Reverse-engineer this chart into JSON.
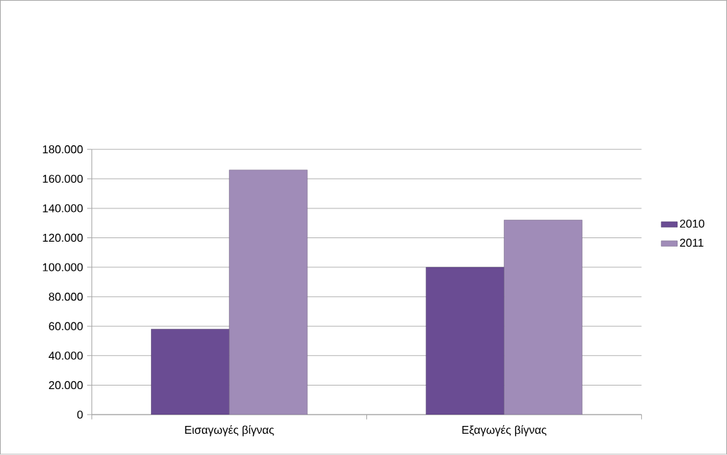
{
  "chart_data": {
    "type": "bar",
    "categories": [
      "Εισαγωγές βίγνας",
      "Εξαγωγές βίγνας"
    ],
    "series": [
      {
        "name": "2010",
        "color": "#6a4c93",
        "values": [
          58000,
          100000
        ]
      },
      {
        "name": "2011",
        "color": "#a08cb8",
        "values": [
          166000,
          132000
        ]
      }
    ],
    "ylim": [
      0,
      180000
    ],
    "yticks": [
      {
        "value": 0,
        "label": "0"
      },
      {
        "value": 20000,
        "label": "20.000"
      },
      {
        "value": 40000,
        "label": "40.000"
      },
      {
        "value": 60000,
        "label": "60.000"
      },
      {
        "value": 80000,
        "label": "80.000"
      },
      {
        "value": 100000,
        "label": "100.000"
      },
      {
        "value": 120000,
        "label": "120.000"
      },
      {
        "value": 140000,
        "label": "140.000"
      },
      {
        "value": 160000,
        "label": "160.000"
      },
      {
        "value": 180000,
        "label": "180.000"
      }
    ],
    "grid": "y",
    "legend": "right"
  }
}
